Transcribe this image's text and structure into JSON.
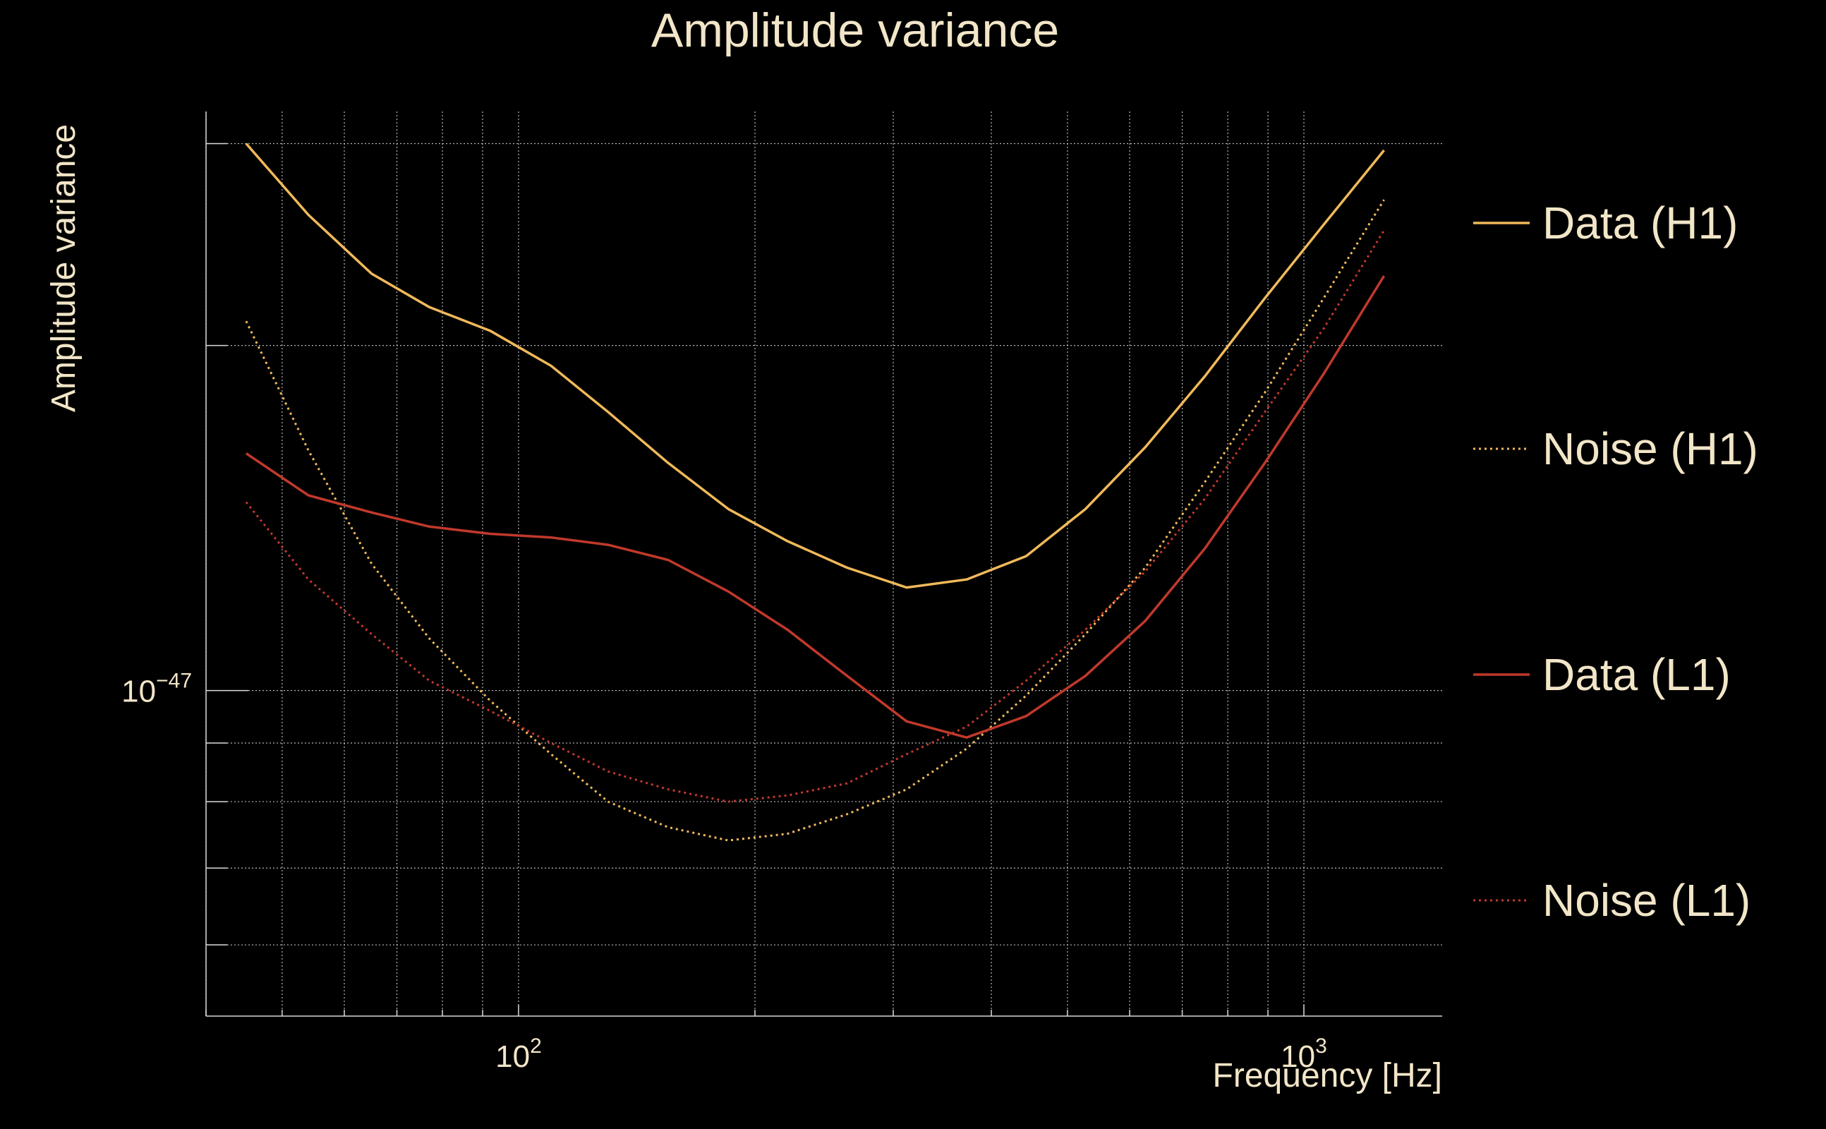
{
  "colors": {
    "background": "#000000",
    "text": "#f2e6c8",
    "grid": "#d8d8d8",
    "h1": "#f0b95a",
    "l1": "#c0392b"
  },
  "chart_data": {
    "type": "line",
    "title": "Amplitude variance",
    "xlabel": "Frequency [Hz]",
    "ylabel": "Amplitude variance",
    "xscale": "log",
    "yscale": "log",
    "xlim": [
      40,
      1500
    ],
    "ylim": [
      5.2e-48,
      3.2e-47
    ],
    "grid": true,
    "legend_position": "right",
    "x_ticks": [
      {
        "value": 100,
        "base": "10",
        "exp": "2"
      },
      {
        "value": 1000,
        "base": "10",
        "exp": "3"
      }
    ],
    "y_ticks": [
      {
        "value": 1e-47,
        "base": "10",
        "exp": "−47"
      }
    ],
    "x": [
      45,
      54,
      65,
      77,
      92,
      110,
      130,
      155,
      185,
      220,
      262,
      312,
      372,
      443,
      527,
      628,
      748,
      892,
      1060,
      1265
    ],
    "series": [
      {
        "name": "Data (H1)",
        "color": "#f0b95a",
        "dash": "solid",
        "values": [
          3e-47,
          2.6e-47,
          2.31e-47,
          2.16e-47,
          2.06e-47,
          1.92e-47,
          1.75e-47,
          1.58e-47,
          1.44e-47,
          1.35e-47,
          1.28e-47,
          1.23e-47,
          1.25e-47,
          1.31e-47,
          1.44e-47,
          1.63e-47,
          1.88e-47,
          2.2e-47,
          2.55e-47,
          2.96e-47
        ]
      },
      {
        "name": "Noise (H1)",
        "color": "#f0b95a",
        "dash": "dotted",
        "values": [
          2.1e-47,
          1.62e-47,
          1.29e-47,
          1.11e-47,
          9.8e-48,
          8.8e-48,
          8e-48,
          7.6e-48,
          7.4e-48,
          7.5e-48,
          7.8e-48,
          8.2e-48,
          8.9e-48,
          9.9e-48,
          1.12e-47,
          1.28e-47,
          1.52e-47,
          1.82e-47,
          2.2e-47,
          2.68e-47
        ]
      },
      {
        "name": "Data (L1)",
        "color": "#c0392b",
        "dash": "solid",
        "values": [
          1.61e-47,
          1.48e-47,
          1.43e-47,
          1.39e-47,
          1.37e-47,
          1.36e-47,
          1.34e-47,
          1.3e-47,
          1.22e-47,
          1.13e-47,
          1.03e-47,
          9.4e-48,
          9.1e-48,
          9.5e-48,
          1.03e-47,
          1.15e-47,
          1.33e-47,
          1.58e-47,
          1.89e-47,
          2.3e-47
        ]
      },
      {
        "name": "Noise (L1)",
        "color": "#c0392b",
        "dash": "dotted",
        "values": [
          1.46e-47,
          1.25e-47,
          1.12e-47,
          1.02e-47,
          9.6e-48,
          9e-48,
          8.5e-48,
          8.2e-48,
          8e-48,
          8.1e-48,
          8.3e-48,
          8.8e-48,
          9.3e-48,
          1.02e-47,
          1.13e-47,
          1.27e-47,
          1.47e-47,
          1.75e-47,
          2.07e-47,
          2.52e-47
        ]
      }
    ]
  }
}
